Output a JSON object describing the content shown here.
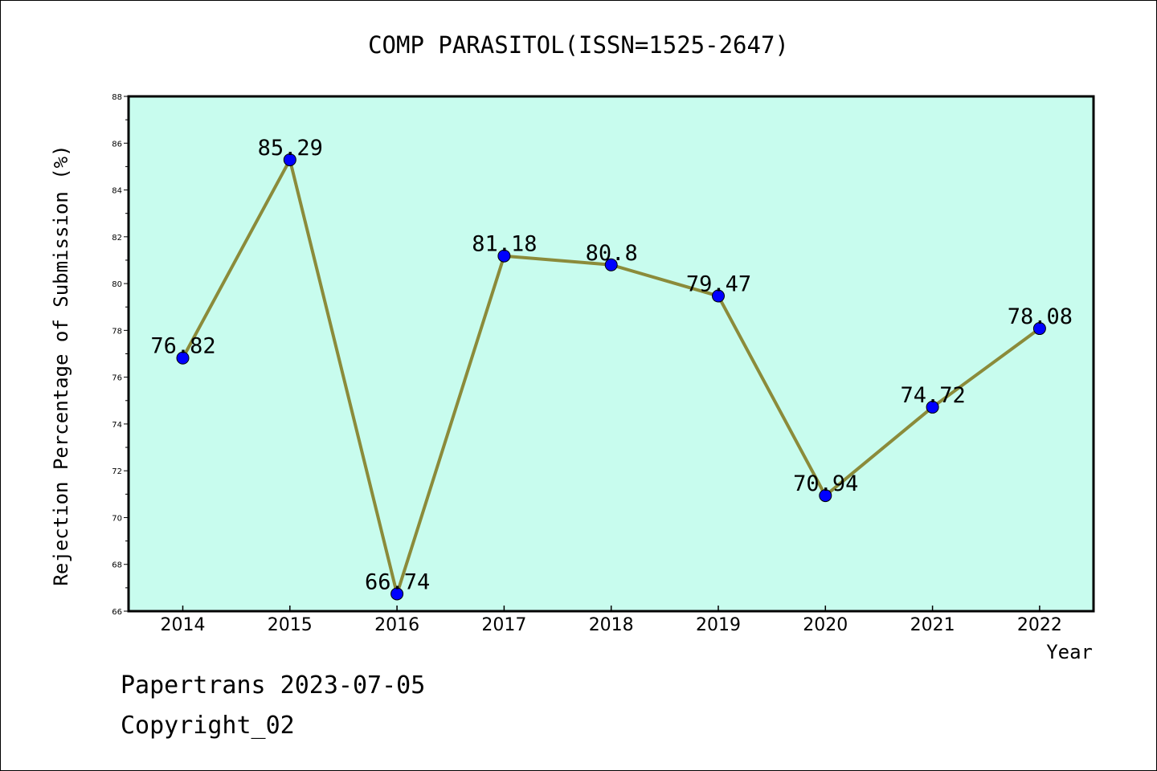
{
  "chart_data": {
    "type": "line",
    "title": "COMP PARASITOL(ISSN=1525-2647)",
    "xlabel": "Year",
    "ylabel": "Rejection Percentage of Submission (%)",
    "categories": [
      "2014",
      "2015",
      "2016",
      "2017",
      "2018",
      "2019",
      "2020",
      "2021",
      "2022"
    ],
    "values": [
      76.82,
      85.29,
      66.74,
      81.18,
      80.8,
      79.47,
      70.94,
      74.72,
      78.08
    ],
    "data_labels": [
      "76.82",
      "85.29",
      "66.74",
      "81.18",
      "80.8",
      "79.47",
      "70.94",
      "74.72",
      "78.08"
    ],
    "ylim": [
      66,
      88
    ],
    "yticks": [
      66,
      68,
      70,
      72,
      74,
      76,
      78,
      80,
      82,
      84,
      86,
      88
    ],
    "grid": false,
    "colors": {
      "plot_background": "#c8fcee",
      "line": "#8b8b3a",
      "marker": "#0000ff"
    }
  },
  "footer": {
    "line1": "Papertrans 2023-07-05",
    "line2": "Copyright_02"
  }
}
